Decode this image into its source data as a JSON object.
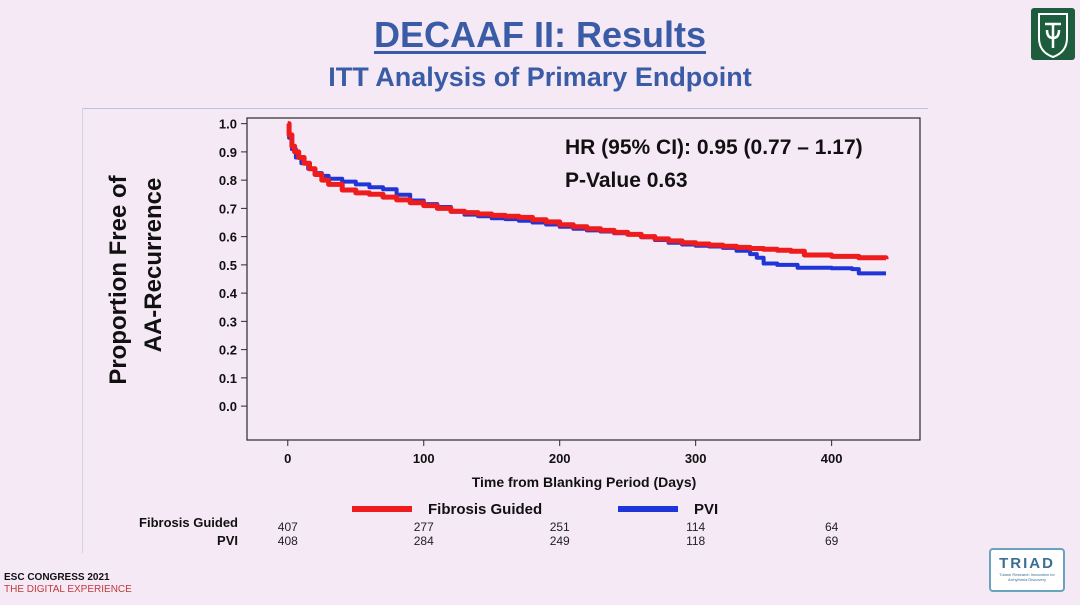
{
  "slide": {
    "title": "DECAAF II: Results",
    "subtitle": "ITT Analysis of Primary Endpoint"
  },
  "annotation": {
    "hr": "HR (95% CI): 0.95 (0.77 – 1.17)",
    "pvalue": "P-Value 0.63"
  },
  "chart_data": {
    "type": "line",
    "title": "",
    "xlabel": "Time from Blanking Period (Days)",
    "ylabel_line1": "Proportion Free of",
    "ylabel_line2": "AA-Recurrence",
    "xlim": [
      -30,
      465
    ],
    "ylim": [
      -0.12,
      1.02
    ],
    "x_ticks": [
      0,
      100,
      200,
      300,
      400
    ],
    "y_ticks": [
      1.0,
      0.9,
      0.8,
      0.7,
      0.6,
      0.5,
      0.4,
      0.3,
      0.2,
      0.1,
      0.0
    ],
    "y_tick_labels": [
      "1.0",
      "0.9",
      "0.8",
      "0.7",
      "0.6",
      "0.5",
      "0.4",
      "0.3",
      "0.2",
      "0.1",
      "0.0"
    ],
    "legend": [
      "Fibrosis Guided",
      "PVI"
    ],
    "series": [
      {
        "name": "Fibrosis Guided",
        "color": "#ee1c1c",
        "points": [
          [
            0,
            1.0
          ],
          [
            1,
            0.96
          ],
          [
            3,
            0.92
          ],
          [
            5,
            0.9
          ],
          [
            8,
            0.88
          ],
          [
            12,
            0.86
          ],
          [
            16,
            0.84
          ],
          [
            20,
            0.82
          ],
          [
            25,
            0.8
          ],
          [
            30,
            0.785
          ],
          [
            40,
            0.765
          ],
          [
            50,
            0.755
          ],
          [
            60,
            0.75
          ],
          [
            70,
            0.74
          ],
          [
            80,
            0.73
          ],
          [
            90,
            0.72
          ],
          [
            100,
            0.71
          ],
          [
            110,
            0.7
          ],
          [
            120,
            0.69
          ],
          [
            130,
            0.685
          ],
          [
            140,
            0.68
          ],
          [
            150,
            0.675
          ],
          [
            160,
            0.672
          ],
          [
            170,
            0.668
          ],
          [
            180,
            0.66
          ],
          [
            190,
            0.652
          ],
          [
            200,
            0.642
          ],
          [
            210,
            0.635
          ],
          [
            220,
            0.628
          ],
          [
            230,
            0.622
          ],
          [
            240,
            0.615
          ],
          [
            250,
            0.608
          ],
          [
            260,
            0.6
          ],
          [
            270,
            0.592
          ],
          [
            280,
            0.585
          ],
          [
            290,
            0.578
          ],
          [
            300,
            0.574
          ],
          [
            310,
            0.57
          ],
          [
            320,
            0.566
          ],
          [
            330,
            0.562
          ],
          [
            340,
            0.558
          ],
          [
            350,
            0.555
          ],
          [
            360,
            0.552
          ],
          [
            370,
            0.548
          ],
          [
            380,
            0.535
          ],
          [
            400,
            0.53
          ],
          [
            420,
            0.525
          ],
          [
            440,
            0.52
          ]
        ]
      },
      {
        "name": "PVI",
        "color": "#1f35d8",
        "points": [
          [
            0,
            1.0
          ],
          [
            1,
            0.95
          ],
          [
            3,
            0.91
          ],
          [
            6,
            0.88
          ],
          [
            10,
            0.86
          ],
          [
            15,
            0.84
          ],
          [
            20,
            0.825
          ],
          [
            25,
            0.815
          ],
          [
            30,
            0.805
          ],
          [
            40,
            0.795
          ],
          [
            50,
            0.785
          ],
          [
            60,
            0.775
          ],
          [
            70,
            0.768
          ],
          [
            80,
            0.748
          ],
          [
            90,
            0.728
          ],
          [
            100,
            0.715
          ],
          [
            110,
            0.705
          ],
          [
            120,
            0.688
          ],
          [
            130,
            0.678
          ],
          [
            140,
            0.672
          ],
          [
            150,
            0.665
          ],
          [
            160,
            0.662
          ],
          [
            170,
            0.656
          ],
          [
            180,
            0.65
          ],
          [
            190,
            0.643
          ],
          [
            200,
            0.635
          ],
          [
            210,
            0.628
          ],
          [
            220,
            0.622
          ],
          [
            230,
            0.618
          ],
          [
            240,
            0.612
          ],
          [
            250,
            0.608
          ],
          [
            260,
            0.598
          ],
          [
            270,
            0.588
          ],
          [
            280,
            0.578
          ],
          [
            290,
            0.572
          ],
          [
            300,
            0.568
          ],
          [
            310,
            0.565
          ],
          [
            320,
            0.56
          ],
          [
            330,
            0.55
          ],
          [
            340,
            0.538
          ],
          [
            345,
            0.525
          ],
          [
            350,
            0.505
          ],
          [
            360,
            0.5
          ],
          [
            370,
            0.5
          ],
          [
            375,
            0.49
          ],
          [
            400,
            0.488
          ],
          [
            415,
            0.485
          ],
          [
            420,
            0.47
          ],
          [
            440,
            0.47
          ]
        ]
      }
    ],
    "risk_table": {
      "times": [
        0,
        100,
        200,
        300,
        400
      ],
      "rows": [
        {
          "label": "Fibrosis Guided",
          "counts": [
            "407",
            "277",
            "251",
            "114",
            "64"
          ]
        },
        {
          "label": "PVI",
          "counts": [
            "408",
            "284",
            "249",
            "118",
            "69"
          ]
        }
      ]
    }
  },
  "footer": {
    "congress_line1": "ESC CONGRESS 2021",
    "congress_line2": "THE DIGITAL EXPERIENCE"
  },
  "logos": {
    "triad": "TRIAD",
    "triad_sub": "Tulane Research Innovation for Arrhythmia Discovery",
    "tulane_icon": "tulane-shield-icon"
  }
}
